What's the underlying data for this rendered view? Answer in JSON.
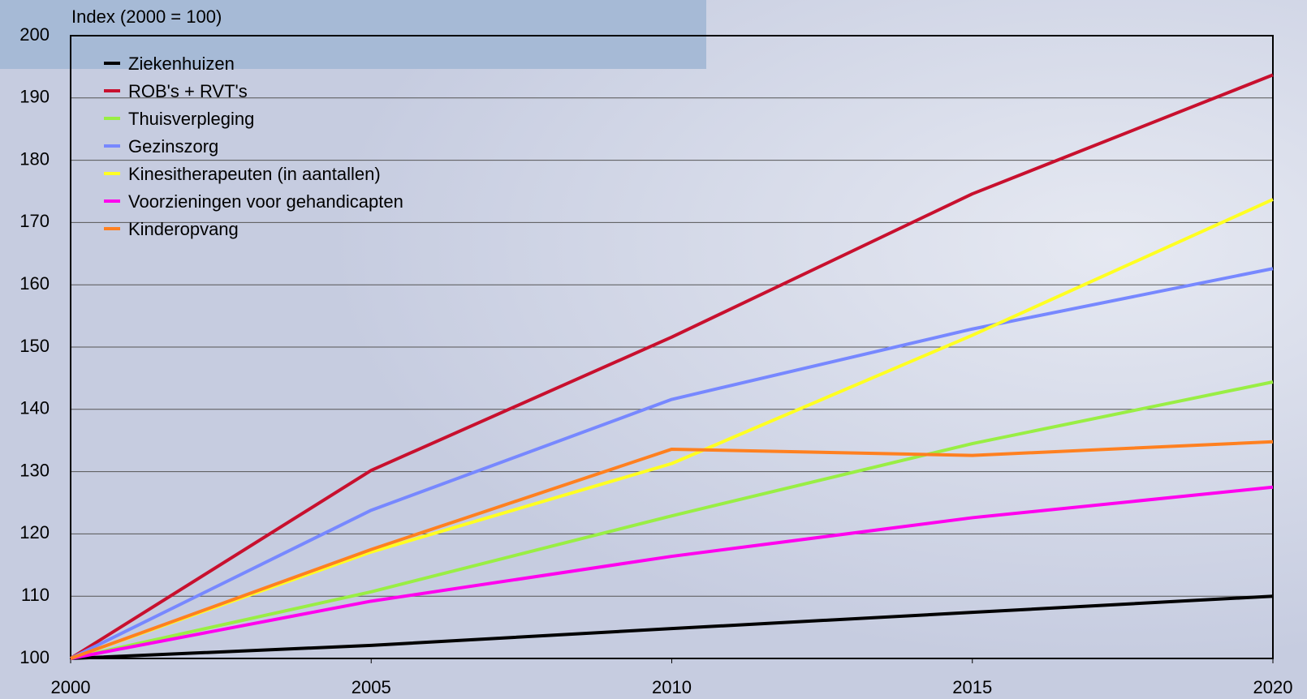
{
  "chart_data": {
    "type": "line",
    "y_label": "Index (2000 = 100)",
    "x": [
      2000,
      2005,
      2010,
      2015,
      2020
    ],
    "xlim": [
      2000,
      2020
    ],
    "xticks": [
      2000,
      2005,
      2010,
      2015,
      2020
    ],
    "ylim": [
      100,
      200
    ],
    "yticks": [
      100,
      110,
      120,
      130,
      140,
      150,
      160,
      170,
      180,
      190,
      200
    ],
    "grid": true,
    "legend": "upper left",
    "series": [
      {
        "name": "Ziekenhuizen",
        "color": "#000000",
        "values": [
          100,
          102.1,
          104.8,
          107.4,
          110
        ]
      },
      {
        "name": "ROB's + RVT's",
        "color": "#c8102e",
        "values": [
          100,
          130.2,
          151.6,
          174.6,
          193.7
        ]
      },
      {
        "name": "Thuisverpleging",
        "color": "#99ee44",
        "values": [
          100,
          110.7,
          122.9,
          134.5,
          144.4
        ]
      },
      {
        "name": "Gezinszorg",
        "color": "#7788ff",
        "values": [
          100,
          123.8,
          141.6,
          152.9,
          162.6
        ]
      },
      {
        "name": "Kinesitherapeuten (in aantallen)",
        "color": "#ffff22",
        "values": [
          100,
          117.1,
          131.3,
          151.9,
          173.7
        ]
      },
      {
        "name": "Voorzieningen voor gehandicapten",
        "color": "#ff00ee",
        "values": [
          100,
          109.2,
          116.4,
          122.6,
          127.5
        ]
      },
      {
        "name": "Kinderopvang",
        "color": "#ff8020",
        "values": [
          100,
          117.5,
          133.6,
          132.6,
          134.8
        ]
      }
    ]
  }
}
